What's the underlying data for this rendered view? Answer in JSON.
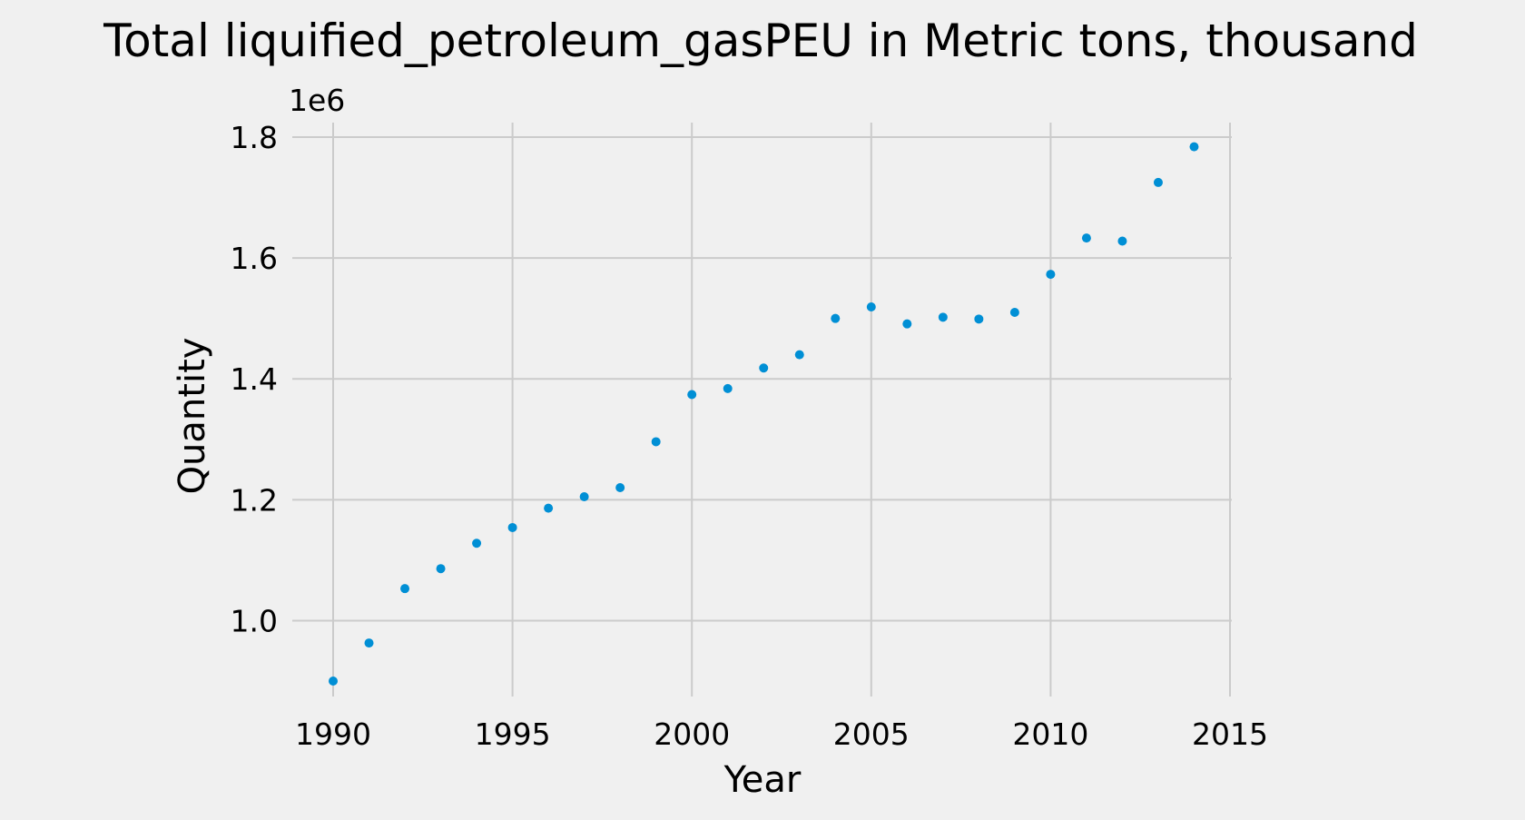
{
  "chart_data": {
    "type": "scatter",
    "title": "Total liquified_petroleum_gasPEU in Metric tons,  thousand",
    "xlabel": "Year",
    "ylabel": "Quantity",
    "y_offset_label": "1e6",
    "xlim": [
      1990,
      2015
    ],
    "ylim": [
      0.9,
      1.8
    ],
    "x_ticks": [
      1990,
      1995,
      2000,
      2005,
      2010,
      2015
    ],
    "y_ticks": [
      1.0,
      1.2,
      1.4,
      1.6,
      1.8
    ],
    "x_tick_labels": [
      "1990",
      "1995",
      "2000",
      "2005",
      "2010",
      "2015"
    ],
    "y_tick_labels": [
      "1.0",
      "1.2",
      "1.4",
      "1.6",
      "1.8"
    ],
    "grid": true,
    "marker_color": "#008fd5",
    "series": [
      {
        "x": [
          1990,
          1991,
          1992,
          1993,
          1994,
          1995,
          1996,
          1997,
          1998,
          1999,
          2000,
          2001,
          2002,
          2003,
          2004,
          2005,
          2006,
          2007,
          2008,
          2009,
          2010,
          2011,
          2012,
          2013,
          2014
        ],
        "y": [
          0.9,
          0.963,
          1.053,
          1.086,
          1.128,
          1.154,
          1.186,
          1.205,
          1.22,
          1.296,
          1.374,
          1.384,
          1.418,
          1.44,
          1.5,
          1.519,
          1.491,
          1.502,
          1.499,
          1.51,
          1.573,
          1.633,
          1.628,
          1.725,
          1.784
        ]
      }
    ]
  }
}
